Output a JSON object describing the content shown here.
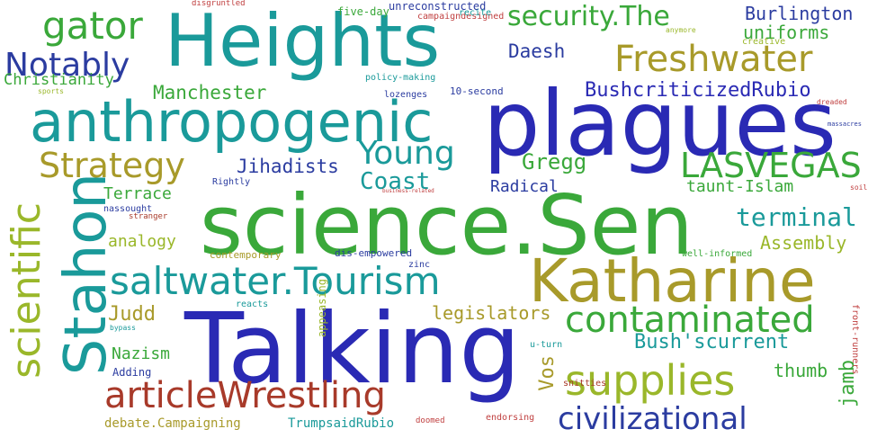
{
  "colors": {
    "green": "#3aa83a",
    "teal": "#1a9a9a",
    "navy": "#2b3ca0",
    "olive": "#a89a2a",
    "yellowgreen": "#9ab72a",
    "blue": "#2a2ab4",
    "brown": "#a83a2a",
    "red": "#c04040"
  },
  "words": {
    "heights": "Heights",
    "plagues": "plagues",
    "anthropogenic": "anthropogenic",
    "science_sen": "science.Sen",
    "talking": "Talking",
    "katharine": "Katharine",
    "stahon": "Stahon",
    "saltwater_tourism": "saltwater.Tourism",
    "contaminated": "contaminated",
    "supplies": "supplies",
    "article_wrestling": "articleWrestling",
    "scientific": "scientific",
    "gator": "gator",
    "notably": "Notably",
    "security_the": "security.The",
    "burlington": "Burlington",
    "uniforms": "uniforms",
    "freshwater": "Freshwater",
    "christianity": "Christianity",
    "manchester": "Manchester",
    "daesh": "Daesh",
    "bush_criticized_rubio": "BushcriticizedRubio",
    "strategy": "Strategy",
    "young": "Young",
    "jihadists": "Jihadists",
    "gregg": "Gregg",
    "las_vegas": "LASVEGAS",
    "coast": "Coast",
    "terrace": "Terrace",
    "radical": "Radical",
    "taunt_islam": "taunt-Islam",
    "terminal": "terminal",
    "analogy": "analogy",
    "assembly": "Assembly",
    "judd": "Judd",
    "legislators": "legislators",
    "nazism": "Nazism",
    "bush_scurrent": "Bush'scurrent",
    "vos": "Vos",
    "thumb": "thumb",
    "jamb": "jamb",
    "civilizational": "civilizational",
    "debate_campaigning": "debate.Campaigning",
    "trump_said_rubio": "TrumpsaidRubio",
    "disgruntled": "disgruntled",
    "five_day": "five-day",
    "unreconstructed": "unreconstructed",
    "campaign_designed": "campaigndesigned",
    "recite": "recite",
    "anymore": "anymore",
    "creative": "creative",
    "policy_making": "policy-making",
    "lozenges": "lozenges",
    "ten_second": "10-second",
    "sports": "sports",
    "dreaded": "dreaded",
    "rightly": "Rightly",
    "business_related": "business-related",
    "massacres": "massacres",
    "nassought": "nassought",
    "stranger": "stranger",
    "contemporary": "contemporary",
    "dis_empowered": "dis-empowered",
    "zinc": "zinc",
    "well_informed": "well-informed",
    "appeasing": "appeasing",
    "reacts": "reacts",
    "bypass": "bypass",
    "adding": "Adding",
    "u_turn": "u-turn",
    "front_runners": "front-runners",
    "snitties": "snitties",
    "endorsing": "endorsing",
    "doomed": "doomed",
    "soil": "soil"
  }
}
